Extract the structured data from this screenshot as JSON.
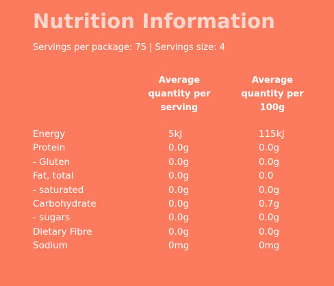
{
  "title": "Nutrition Information",
  "servings_line": "Servings per package: 75  |  Servings size: 4",
  "columns": {
    "per_serving": [
      "Average",
      "quantity per",
      "serving"
    ],
    "per_100g": [
      "Average",
      "quantity per",
      "100g"
    ]
  },
  "rows": [
    {
      "name": "Energy",
      "per_serving": "5kJ",
      "per_100g": "115kJ"
    },
    {
      "name": "Protein",
      "per_serving": "0.0g",
      "per_100g": "0.0g"
    },
    {
      "name": "- Gluten",
      "per_serving": "0.0g",
      "per_100g": "0.0g"
    },
    {
      "name": "Fat, total",
      "per_serving": "0.0g",
      "per_100g": "0.0"
    },
    {
      "name": "- saturated",
      "per_serving": "0.0g",
      "per_100g": "0.0g"
    },
    {
      "name": "Carbohydrate",
      "per_serving": "0.0g",
      "per_100g": "0.7g"
    },
    {
      "name": "- sugars",
      "per_serving": "0.0g",
      "per_100g": "0.0g"
    },
    {
      "name": "Dietary Fibre",
      "per_serving": "0.0g",
      "per_100g": "0.0g"
    },
    {
      "name": "Sodium",
      "per_serving": "0mg",
      "per_100g": "0mg"
    }
  ],
  "colors": {
    "background": "#fc7b5e",
    "title": "#ffd6cb",
    "text": "#ffffff"
  }
}
